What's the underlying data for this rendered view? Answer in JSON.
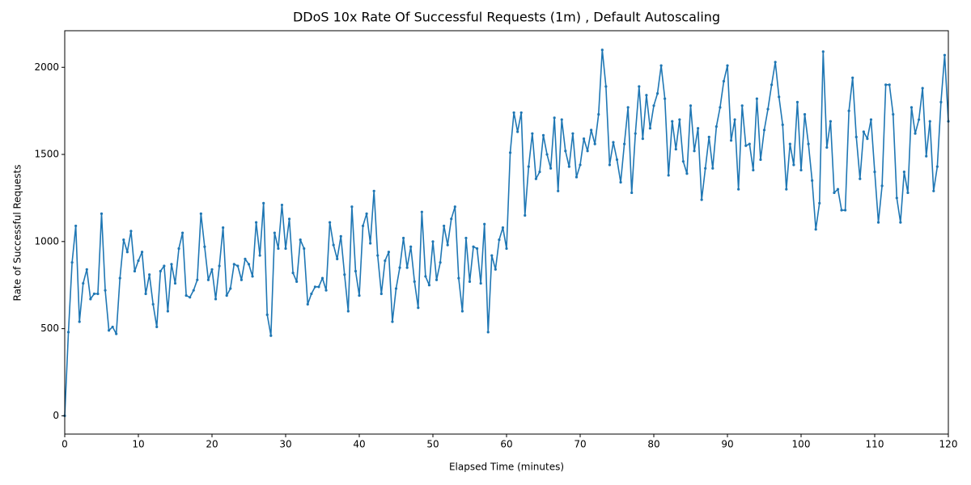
{
  "chart_data": {
    "type": "line",
    "title": "DDoS 10x Rate Of Successful Requests (1m) , Default Autoscaling",
    "x_label": "Elapsed Time (minutes)",
    "y_label": "Rate of Successful Requests",
    "xlim": [
      0,
      120
    ],
    "ylim": [
      -105,
      2210
    ],
    "xticks": [
      0,
      10,
      20,
      30,
      40,
      50,
      60,
      70,
      80,
      90,
      100,
      110,
      120
    ],
    "yticks": [
      0,
      500,
      1000,
      1500,
      2000
    ],
    "grid": false,
    "x": [
      0,
      0.5,
      1,
      1.5,
      2,
      2.5,
      3,
      3.5,
      4,
      4.5,
      5,
      5.5,
      6,
      6.5,
      7,
      7.5,
      8,
      8.5,
      9,
      9.5,
      10,
      10.5,
      11,
      11.5,
      12,
      12.5,
      13,
      13.5,
      14,
      14.5,
      15,
      15.5,
      16,
      16.5,
      17,
      17.5,
      18,
      18.5,
      19,
      19.5,
      20,
      20.5,
      21,
      21.5,
      22,
      22.5,
      23,
      23.5,
      24,
      24.5,
      25,
      25.5,
      26,
      26.5,
      27,
      27.5,
      28,
      28.5,
      29,
      29.5,
      30,
      30.5,
      31,
      31.5,
      32,
      32.5,
      33,
      33.5,
      34,
      34.5,
      35,
      35.5,
      36,
      36.5,
      37,
      37.5,
      38,
      38.5,
      39,
      39.5,
      40,
      40.5,
      41,
      41.5,
      42,
      42.5,
      43,
      43.5,
      44,
      44.5,
      45,
      45.5,
      46,
      46.5,
      47,
      47.5,
      48,
      48.5,
      49,
      49.5,
      50,
      50.5,
      51,
      51.5,
      52,
      52.5,
      53,
      53.5,
      54,
      54.5,
      55,
      55.5,
      56,
      56.5,
      57,
      57.5,
      58,
      58.5,
      59,
      59.5,
      60,
      60.5,
      61,
      61.5,
      62,
      62.5,
      63,
      63.5,
      64,
      64.5,
      65,
      65.5,
      66,
      66.5,
      67,
      67.5,
      68,
      68.5,
      69,
      69.5,
      70,
      70.5,
      71,
      71.5,
      72,
      72.5,
      73,
      73.5,
      74,
      74.5,
      75,
      75.5,
      76,
      76.5,
      77,
      77.5,
      78,
      78.5,
      79,
      79.5,
      80,
      80.5,
      81,
      81.5,
      82,
      82.5,
      83,
      83.5,
      84,
      84.5,
      85,
      85.5,
      86,
      86.5,
      87,
      87.5,
      88,
      88.5,
      89,
      89.5,
      90,
      90.5,
      91,
      91.5,
      92,
      92.5,
      93,
      93.5,
      94,
      94.5,
      95,
      95.5,
      96,
      96.5,
      97,
      97.5,
      98,
      98.5,
      99,
      99.5,
      100,
      100.5,
      101,
      101.5,
      102,
      102.5,
      103,
      103.5,
      104,
      104.5,
      105,
      105.5,
      106,
      106.5,
      107,
      107.5,
      108,
      108.5,
      109,
      109.5,
      110,
      110.5,
      111,
      111.5,
      112,
      112.5,
      113,
      113.5,
      114,
      114.5,
      115,
      115.5,
      116,
      116.5,
      117,
      117.5,
      118,
      118.5,
      119,
      119.5,
      120
    ],
    "series": [
      {
        "color": "#1f77b4",
        "values": [
          0,
          480,
          880,
          1090,
          540,
          760,
          840,
          670,
          700,
          700,
          1160,
          720,
          490,
          510,
          470,
          790,
          1010,
          940,
          1060,
          830,
          890,
          940,
          700,
          810,
          640,
          510,
          830,
          860,
          600,
          870,
          760,
          960,
          1050,
          690,
          680,
          720,
          780,
          1160,
          970,
          780,
          840,
          670,
          860,
          1080,
          690,
          730,
          870,
          860,
          780,
          900,
          870,
          800,
          1110,
          920,
          1220,
          580,
          460,
          1050,
          960,
          1210,
          960,
          1130,
          820,
          770,
          1010,
          960,
          640,
          700,
          740,
          740,
          790,
          720,
          1110,
          980,
          900,
          1030,
          810,
          600,
          1200,
          830,
          690,
          1090,
          1160,
          990,
          1290,
          920,
          700,
          890,
          940,
          540,
          730,
          850,
          1020,
          850,
          970,
          770,
          620,
          1170,
          800,
          750,
          1000,
          780,
          880,
          1090,
          980,
          1130,
          1200,
          790,
          600,
          1020,
          770,
          970,
          960,
          760,
          1100,
          480,
          920,
          840,
          1010,
          1080,
          960,
          1510,
          1740,
          1630,
          1740,
          1150,
          1430,
          1620,
          1360,
          1400,
          1610,
          1500,
          1420,
          1710,
          1290,
          1700,
          1520,
          1430,
          1620,
          1370,
          1440,
          1590,
          1520,
          1640,
          1560,
          1730,
          2100,
          1890,
          1440,
          1570,
          1470,
          1340,
          1560,
          1770,
          1280,
          1620,
          1890,
          1590,
          1840,
          1650,
          1780,
          1850,
          2010,
          1820,
          1380,
          1690,
          1530,
          1700,
          1460,
          1390,
          1780,
          1520,
          1650,
          1240,
          1420,
          1600,
          1420,
          1660,
          1770,
          1920,
          2010,
          1580,
          1700,
          1300,
          1780,
          1550,
          1560,
          1410,
          1820,
          1470,
          1640,
          1760,
          1900,
          2030,
          1830,
          1670,
          1300,
          1560,
          1440,
          1800,
          1410,
          1730,
          1560,
          1350,
          1070,
          1220,
          2090,
          1540,
          1690,
          1280,
          1300,
          1180,
          1180,
          1750,
          1940,
          1600,
          1360,
          1630,
          1590,
          1700,
          1400,
          1110,
          1320,
          1900,
          1900,
          1730,
          1250,
          1110,
          1400,
          1280,
          1770,
          1620,
          1700,
          1880,
          1490,
          1690,
          1290,
          1430,
          1800,
          2070,
          1690
        ]
      }
    ]
  }
}
